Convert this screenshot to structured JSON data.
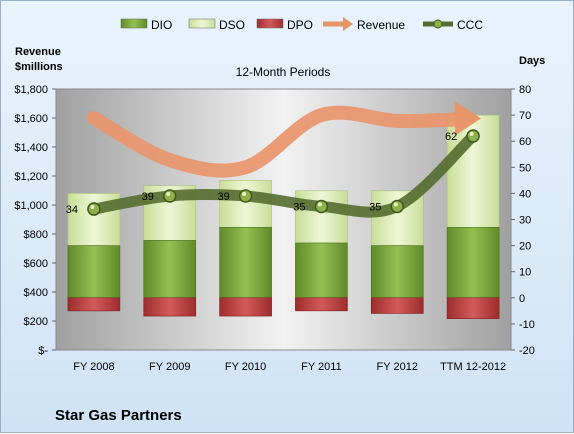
{
  "company": "Star Gas Partners",
  "chart_data": {
    "type": "bar",
    "title": "12-Month Periods",
    "left_axis_label": [
      "Revenue",
      "$millions"
    ],
    "right_axis_label": "Days",
    "categories": [
      "FY 2008",
      "FY 2009",
      "FY 2010",
      "FY 2011",
      "FY 2012",
      "TTM 12-2012"
    ],
    "left_ylim": [
      0,
      1800
    ],
    "left_ticks": [
      "$-",
      "$200",
      "$400",
      "$600",
      "$800",
      "$1,000",
      "$1,200",
      "$1,400",
      "$1,600",
      "$1,800"
    ],
    "right_ylim": [
      -20,
      80
    ],
    "right_ticks": [
      "-20",
      "-10",
      "0",
      "10",
      "20",
      "30",
      "40",
      "50",
      "60",
      "70",
      "80"
    ],
    "legend_placement": "top",
    "series": [
      {
        "name": "DIO",
        "axis": "right",
        "kind": "stacked-bar",
        "color": "#77a03a",
        "values": [
          20,
          22,
          27,
          21,
          20,
          27
        ]
      },
      {
        "name": "DSO",
        "axis": "right",
        "kind": "stacked-bar",
        "color": "#d6e8ad",
        "values": [
          20,
          21,
          18,
          20,
          21,
          43
        ]
      },
      {
        "name": "DPO",
        "axis": "right",
        "kind": "stacked-bar-negative",
        "color": "#b93a3a",
        "values": [
          -5,
          -7,
          -7,
          -5,
          -6,
          -8
        ]
      },
      {
        "name": "Revenue",
        "axis": "left",
        "kind": "line",
        "color": "#e8956a",
        "values": [
          1600,
          1310,
          1260,
          1620,
          1580,
          1590
        ]
      },
      {
        "name": "CCC",
        "axis": "right",
        "kind": "line",
        "color": "#556b2f",
        "values": [
          34,
          39,
          39,
          35,
          35,
          62
        ]
      }
    ],
    "data_labels": [
      "34",
      "39",
      "39",
      "35",
      "35",
      "62"
    ],
    "grid": false
  }
}
